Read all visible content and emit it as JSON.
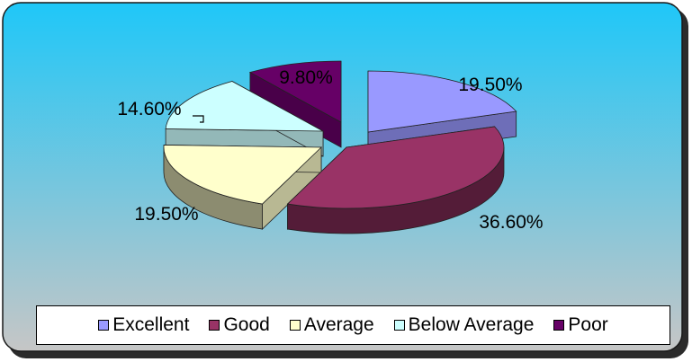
{
  "chart_data": {
    "type": "pie",
    "style": "3d-exploded",
    "categories": [
      "Excellent",
      "Good",
      "Average",
      "Below Average",
      "Poor"
    ],
    "values": [
      19.5,
      36.6,
      19.5,
      14.6,
      9.8
    ],
    "labels": [
      "19.50%",
      "36.60%",
      "19.50%",
      "14.60%",
      "9.80%"
    ],
    "colors": [
      "#9999ff",
      "#993366",
      "#ffffcc",
      "#ccffff",
      "#660066"
    ],
    "legend_position": "bottom",
    "background": {
      "top": "#1fc7f8",
      "bottom": "#c6c6c6"
    }
  }
}
